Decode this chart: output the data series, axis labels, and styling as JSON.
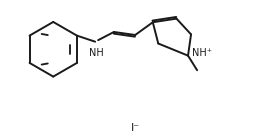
{
  "background": "#ffffff",
  "line_color": "#1a1a1a",
  "bond_width": 1.4,
  "text_color": "#1a1a1a",
  "font_size": 7.0,
  "fig_width": 2.78,
  "fig_height": 1.38,
  "dpi": 100,
  "iodide_label": "I⁻",
  "nh_plus_label": "NH⁺",
  "nh_label": "NH"
}
